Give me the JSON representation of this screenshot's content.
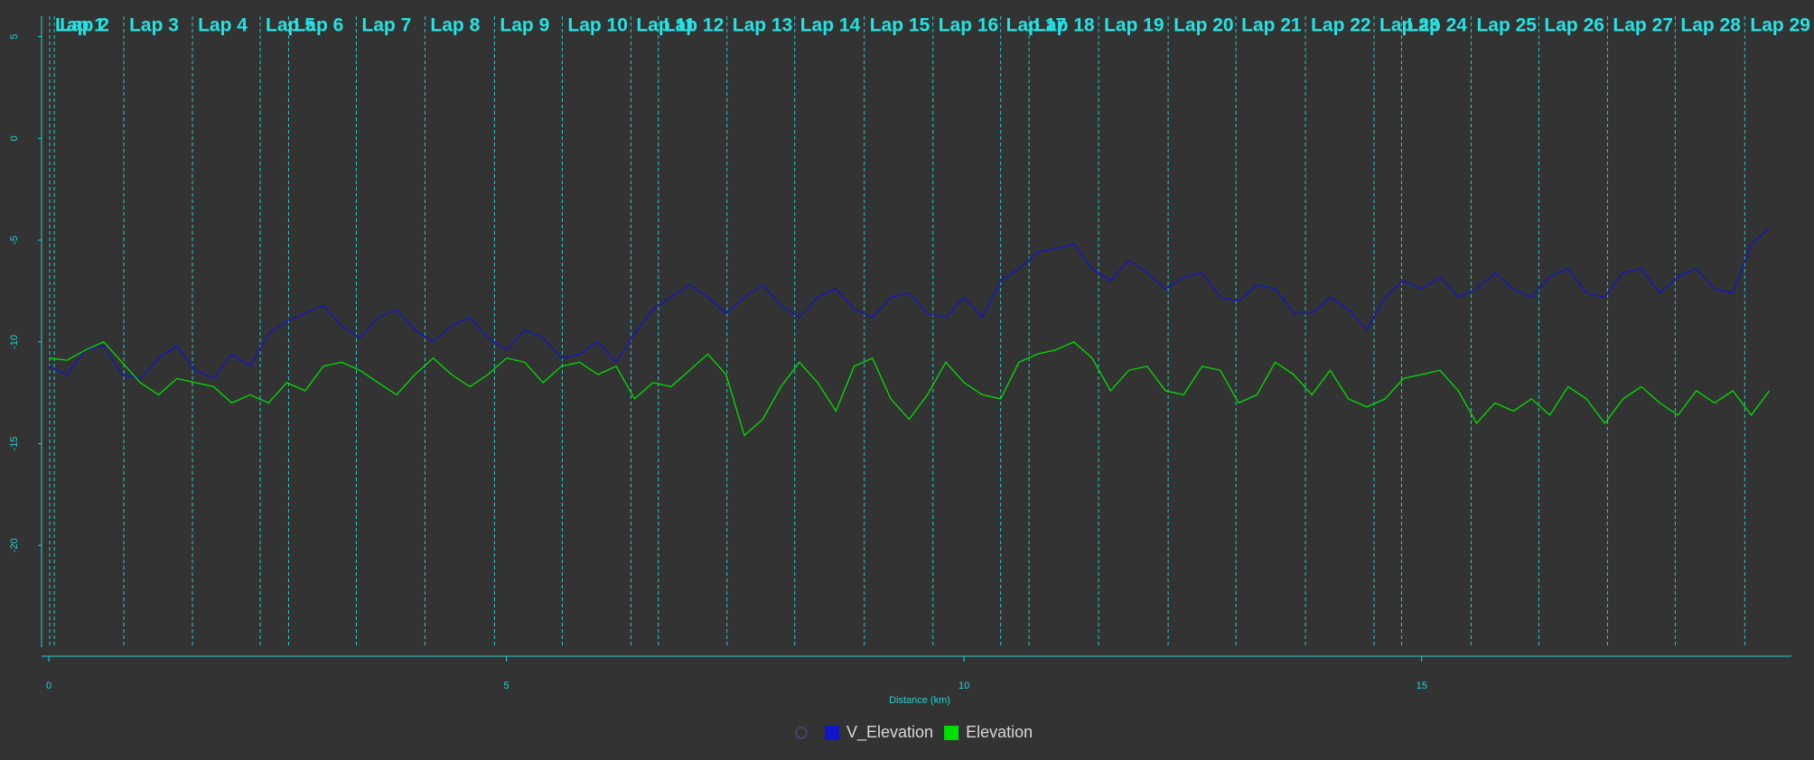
{
  "chart_data": {
    "type": "line",
    "x_label": "Distance (km)",
    "xlim": [
      0,
      19
    ],
    "xticks": [
      0,
      5,
      10,
      15
    ],
    "ylim": [
      -25,
      6
    ],
    "yticks": [
      5,
      0,
      -5,
      -10,
      -15,
      -20
    ],
    "laps": [
      {
        "x": 0.01,
        "label": "Lap 1"
      },
      {
        "x": 0.06,
        "label": "Lap 2"
      },
      {
        "x": 0.82,
        "label": "Lap 3"
      },
      {
        "x": 1.57,
        "label": "Lap 4"
      },
      {
        "x": 2.31,
        "label": "Lap 5"
      },
      {
        "x": 2.62,
        "label": "Lap 6"
      },
      {
        "x": 3.36,
        "label": "Lap 7"
      },
      {
        "x": 4.11,
        "label": "Lap 8"
      },
      {
        "x": 4.87,
        "label": "Lap 9"
      },
      {
        "x": 5.61,
        "label": "Lap 10"
      },
      {
        "x": 6.36,
        "label": "Lap 11"
      },
      {
        "x": 6.66,
        "label": "Lap 12"
      },
      {
        "x": 7.41,
        "label": "Lap 13"
      },
      {
        "x": 8.15,
        "label": "Lap 14"
      },
      {
        "x": 8.91,
        "label": "Lap 15"
      },
      {
        "x": 9.66,
        "label": "Lap 16"
      },
      {
        "x": 10.4,
        "label": "Lap 17"
      },
      {
        "x": 10.71,
        "label": "Lap 18"
      },
      {
        "x": 11.47,
        "label": "Lap 19"
      },
      {
        "x": 12.23,
        "label": "Lap 20"
      },
      {
        "x": 12.97,
        "label": "Lap 21"
      },
      {
        "x": 13.73,
        "label": "Lap 22"
      },
      {
        "x": 14.48,
        "label": "Lap 23"
      },
      {
        "x": 14.78,
        "label": "Lap 24"
      },
      {
        "x": 15.54,
        "label": "Lap 25"
      },
      {
        "x": 16.28,
        "label": "Lap 26"
      },
      {
        "x": 17.03,
        "label": "Lap 27"
      },
      {
        "x": 17.77,
        "label": "Lap 28"
      },
      {
        "x": 18.53,
        "label": "Lap 29"
      }
    ],
    "x": [
      0,
      0.2,
      0.4,
      0.6,
      0.8,
      1,
      1.2,
      1.4,
      1.6,
      1.8,
      2,
      2.2,
      2.4,
      2.6,
      2.8,
      3,
      3.2,
      3.4,
      3.6,
      3.8,
      4,
      4.2,
      4.4,
      4.6,
      4.8,
      5,
      5.2,
      5.4,
      5.6,
      5.8,
      6,
      6.2,
      6.4,
      6.6,
      6.8,
      7,
      7.2,
      7.4,
      7.6,
      7.8,
      8,
      8.2,
      8.4,
      8.6,
      8.8,
      9,
      9.2,
      9.4,
      9.6,
      9.8,
      10,
      10.2,
      10.4,
      10.6,
      10.8,
      11,
      11.2,
      11.4,
      11.6,
      11.8,
      12,
      12.2,
      12.4,
      12.6,
      12.8,
      13,
      13.2,
      13.4,
      13.6,
      13.8,
      14,
      14.2,
      14.4,
      14.6,
      14.8,
      15,
      15.2,
      15.4,
      15.6,
      15.8,
      16,
      16.2,
      16.4,
      16.6,
      16.8,
      17,
      17.2,
      17.4,
      17.6,
      17.8,
      18,
      18.2,
      18.4,
      18.6,
      18.8
    ],
    "series": [
      {
        "name": "V_Elevation",
        "color": "#1414c8",
        "values": [
          -11.2,
          -11.6,
          -10.4,
          -10.2,
          -11.6,
          -11.8,
          -10.8,
          -10.2,
          -11.4,
          -11.8,
          -10.6,
          -11.2,
          -9.6,
          -9.0,
          -8.6,
          -8.2,
          -9.2,
          -9.8,
          -8.8,
          -8.4,
          -9.4,
          -10.0,
          -9.2,
          -8.8,
          -9.8,
          -10.4,
          -9.4,
          -9.8,
          -10.8,
          -10.6,
          -10.0,
          -11.0,
          -9.6,
          -8.4,
          -7.8,
          -7.2,
          -7.8,
          -8.6,
          -7.8,
          -7.2,
          -8.2,
          -8.8,
          -7.8,
          -7.4,
          -8.4,
          -8.8,
          -7.8,
          -7.6,
          -8.6,
          -8.8,
          -7.8,
          -8.8,
          -7.0,
          -6.4,
          -5.6,
          -5.4,
          -5.2,
          -6.4,
          -7.0,
          -6.0,
          -6.6,
          -7.4,
          -6.8,
          -6.6,
          -7.8,
          -8.0,
          -7.2,
          -7.4,
          -8.6,
          -8.6,
          -7.8,
          -8.4,
          -9.4,
          -7.8,
          -7.0,
          -7.4,
          -6.8,
          -7.8,
          -7.4,
          -6.6,
          -7.4,
          -7.8,
          -6.8,
          -6.4,
          -7.6,
          -7.8,
          -6.6,
          -6.4,
          -7.6,
          -6.8,
          -6.4,
          -7.4,
          -7.6,
          -5.2,
          -4.4
        ]
      },
      {
        "name": "Elevation",
        "color": "#00e000",
        "values": [
          -10.8,
          -10.9,
          -10.4,
          -10.0,
          -11.0,
          -12.0,
          -12.6,
          -11.8,
          -12.0,
          -12.2,
          -13.0,
          -12.6,
          -13.0,
          -12.0,
          -12.4,
          -11.2,
          -11.0,
          -11.4,
          -12.0,
          -12.6,
          -11.6,
          -10.8,
          -11.6,
          -12.2,
          -11.6,
          -10.8,
          -11.0,
          -12.0,
          -11.2,
          -11.0,
          -11.6,
          -11.2,
          -12.8,
          -12.0,
          -12.2,
          -11.4,
          -10.6,
          -11.6,
          -14.6,
          -13.8,
          -12.2,
          -11.0,
          -12.0,
          -13.4,
          -11.2,
          -10.8,
          -12.8,
          -13.8,
          -12.6,
          -11.0,
          -12.0,
          -12.6,
          -12.8,
          -11.0,
          -10.6,
          -10.4,
          -10.0,
          -10.8,
          -12.4,
          -11.4,
          -11.2,
          -12.4,
          -12.6,
          -11.2,
          -11.4,
          -13.0,
          -12.6,
          -11.0,
          -11.6,
          -12.6,
          -11.4,
          -12.8,
          -13.2,
          -12.8,
          -11.8,
          -11.6,
          -11.4,
          -12.4,
          -14.0,
          -13.0,
          -13.4,
          -12.8,
          -13.6,
          -12.2,
          -12.8,
          -14.0,
          -12.8,
          -12.2,
          -13.0,
          -13.6,
          -12.4,
          -13.0,
          -12.4,
          -13.6,
          -12.4
        ]
      }
    ],
    "lap_color": "#2ccaca",
    "axis_color": "#2ad0d0"
  }
}
